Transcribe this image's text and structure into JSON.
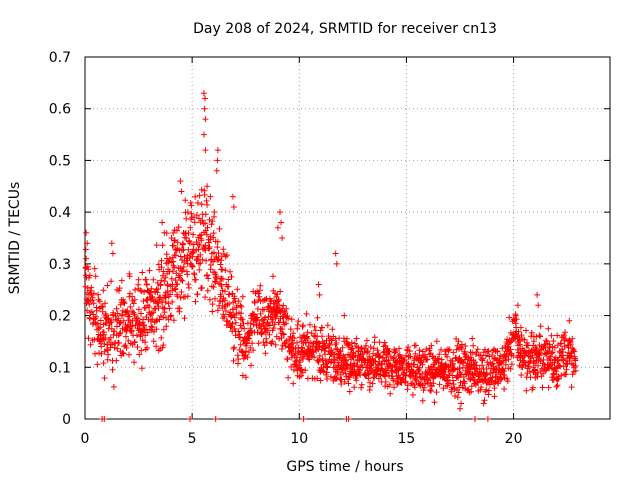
{
  "chart_data": {
    "type": "scatter",
    "title": "Day 208 of 2024, SRMTID for receiver cn13",
    "xlabel": "GPS time / hours",
    "ylabel": "SRMTID / TECUs",
    "xlim": [
      0,
      24.5
    ],
    "ylim": [
      0,
      0.7
    ],
    "x_ticks": [
      0,
      5,
      10,
      15,
      20
    ],
    "y_ticks": [
      0,
      0.1,
      0.2,
      0.3,
      0.4,
      0.5,
      0.6,
      0.7
    ],
    "grid": true,
    "marker": "+",
    "color": "#ff0000",
    "trend": [
      [
        0.0,
        0.26
      ],
      [
        0.5,
        0.19
      ],
      [
        1.0,
        0.18
      ],
      [
        1.5,
        0.17
      ],
      [
        2.0,
        0.19
      ],
      [
        2.5,
        0.2
      ],
      [
        3.0,
        0.21
      ],
      [
        3.5,
        0.23
      ],
      [
        4.0,
        0.26
      ],
      [
        4.5,
        0.3
      ],
      [
        5.0,
        0.32
      ],
      [
        5.5,
        0.36
      ],
      [
        6.0,
        0.3
      ],
      [
        6.5,
        0.25
      ],
      [
        7.0,
        0.2
      ],
      [
        7.5,
        0.14
      ],
      [
        8.0,
        0.19
      ],
      [
        8.5,
        0.2
      ],
      [
        9.0,
        0.21
      ],
      [
        9.5,
        0.15
      ],
      [
        10.0,
        0.12
      ],
      [
        10.5,
        0.14
      ],
      [
        11.0,
        0.13
      ],
      [
        11.5,
        0.12
      ],
      [
        12.0,
        0.11
      ],
      [
        12.5,
        0.11
      ],
      [
        13.0,
        0.1
      ],
      [
        14.0,
        0.1
      ],
      [
        15.0,
        0.1
      ],
      [
        16.0,
        0.09
      ],
      [
        17.0,
        0.1
      ],
      [
        18.0,
        0.1
      ],
      [
        19.0,
        0.09
      ],
      [
        19.5,
        0.1
      ],
      [
        20.0,
        0.16
      ],
      [
        20.5,
        0.12
      ],
      [
        21.0,
        0.12
      ],
      [
        21.5,
        0.12
      ],
      [
        22.0,
        0.11
      ],
      [
        22.5,
        0.13
      ],
      [
        22.9,
        0.1
      ]
    ],
    "spread": [
      [
        0.0,
        0.07
      ],
      [
        3.0,
        0.07
      ],
      [
        4.0,
        0.08
      ],
      [
        6.0,
        0.09
      ],
      [
        7.0,
        0.07
      ],
      [
        8.0,
        0.05
      ],
      [
        9.5,
        0.05
      ],
      [
        10.5,
        0.05
      ],
      [
        12.0,
        0.04
      ],
      [
        19.5,
        0.04
      ],
      [
        20.5,
        0.05
      ],
      [
        23.0,
        0.04
      ]
    ],
    "outliers": [
      [
        5.55,
        0.63
      ],
      [
        5.6,
        0.62
      ],
      [
        5.58,
        0.6
      ],
      [
        5.62,
        0.58
      ],
      [
        5.55,
        0.55
      ],
      [
        5.62,
        0.52
      ],
      [
        6.2,
        0.52
      ],
      [
        6.18,
        0.5
      ],
      [
        6.15,
        0.48
      ],
      [
        5.7,
        0.45
      ],
      [
        4.45,
        0.46
      ],
      [
        4.5,
        0.44
      ],
      [
        5.85,
        0.43
      ],
      [
        6.9,
        0.43
      ],
      [
        6.95,
        0.41
      ],
      [
        9.1,
        0.4
      ],
      [
        9.15,
        0.38
      ],
      [
        9.0,
        0.37
      ],
      [
        9.2,
        0.35
      ],
      [
        11.7,
        0.32
      ],
      [
        11.75,
        0.3
      ],
      [
        3.6,
        0.38
      ],
      [
        3.7,
        0.36
      ],
      [
        0.05,
        0.36
      ],
      [
        0.1,
        0.34
      ],
      [
        1.25,
        0.34
      ],
      [
        1.3,
        0.32
      ],
      [
        5.0,
        0.39
      ],
      [
        4.8,
        0.4
      ],
      [
        21.1,
        0.24
      ],
      [
        21.15,
        0.22
      ],
      [
        20.2,
        0.22
      ],
      [
        20.1,
        0.2
      ],
      [
        22.6,
        0.19
      ],
      [
        17.5,
        0.02
      ],
      [
        17.55,
        0.03
      ],
      [
        18.6,
        0.03
      ],
      [
        10.9,
        0.26
      ],
      [
        10.95,
        0.24
      ],
      [
        12.1,
        0.2
      ]
    ],
    "zero_points": [
      0.8,
      0.9,
      4.9,
      6.1,
      10.2,
      12.2,
      12.3,
      18.2,
      18.8
    ]
  }
}
